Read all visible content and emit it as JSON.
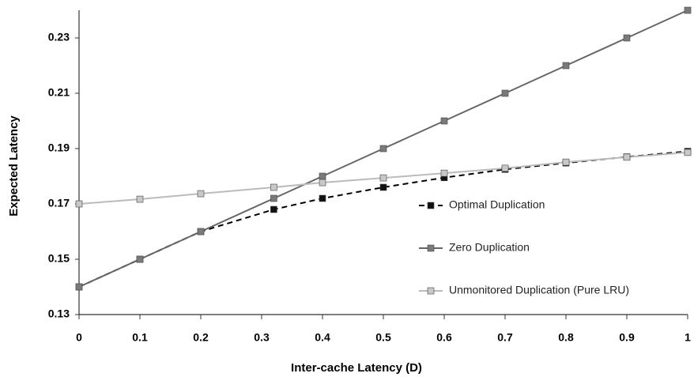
{
  "chart_data": {
    "type": "line",
    "y_label": "Expected Latency",
    "x_label": "Inter-cache Latency (D)",
    "x": [
      0,
      0.1,
      0.2,
      0.32,
      0.4,
      0.5,
      0.6,
      0.7,
      0.8,
      0.9,
      1
    ],
    "series": [
      {
        "name": "Optimal Duplication",
        "color": "#000000",
        "marker_color": "#111111",
        "dashed": true,
        "values": [
          0.14,
          0.15,
          0.16,
          0.168,
          0.172,
          0.176,
          0.1795,
          0.1825,
          0.1848,
          0.187,
          0.189
        ]
      },
      {
        "name": "Zero Duplication",
        "color": "#666666",
        "marker_color": "#7a7a7a",
        "dashed": false,
        "values": [
          0.14,
          0.15,
          0.16,
          0.172,
          0.18,
          0.19,
          0.2,
          0.21,
          0.22,
          0.23,
          0.24
        ]
      },
      {
        "name": "Unmonitored Duplication (Pure LRU)",
        "color": "#bbbbbb",
        "marker_color": "#c8c8c8",
        "dashed": false,
        "values": [
          0.17,
          0.1717,
          0.1737,
          0.176,
          0.1777,
          0.1794,
          0.1811,
          0.1829,
          0.1851,
          0.1869,
          0.1886
        ]
      }
    ],
    "xlim": [
      0,
      1
    ],
    "xticks": [
      0,
      0.1,
      0.2,
      0.3,
      0.4,
      0.5,
      0.6,
      0.7,
      0.8,
      0.9,
      1
    ],
    "ylim": [
      0.13,
      0.24
    ],
    "yticks": [
      0.13,
      0.15,
      0.17,
      0.19,
      0.21,
      0.23
    ],
    "grid": false
  }
}
